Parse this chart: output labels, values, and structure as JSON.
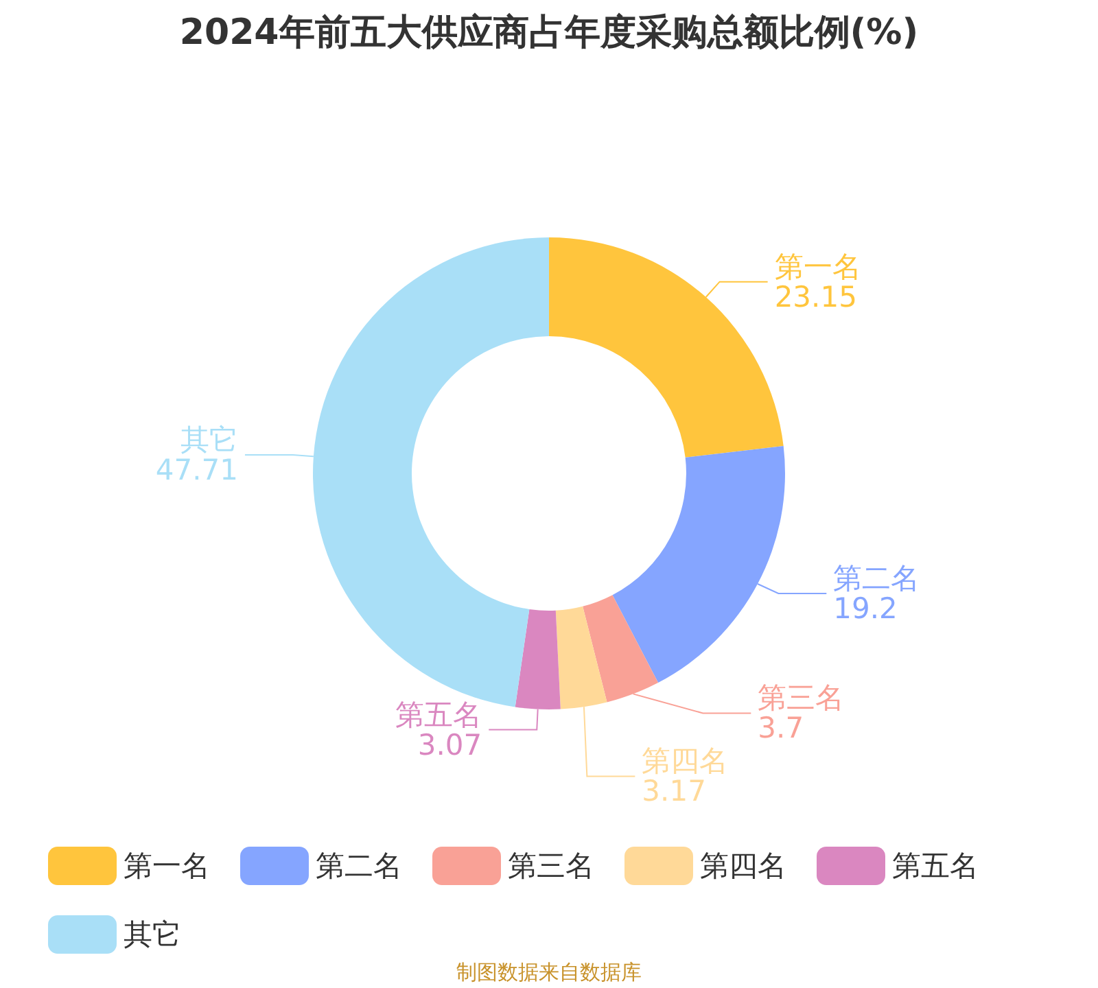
{
  "chart_data": {
    "type": "donut",
    "title": "2024年前五大供应商占年度采购总额比例(%)",
    "categories": [
      "第一名",
      "第二名",
      "第三名",
      "第四名",
      "第五名",
      "其它"
    ],
    "values": [
      23.15,
      19.2,
      3.7,
      3.17,
      3.07,
      47.71
    ],
    "colors": [
      "#ffc53d",
      "#85a5ff",
      "#f9a196",
      "#ffd998",
      "#da87c0",
      "#a9dff7"
    ],
    "data_labels": true,
    "legend": "bottom",
    "annotations": [
      "制图数据来自数据库"
    ]
  }
}
